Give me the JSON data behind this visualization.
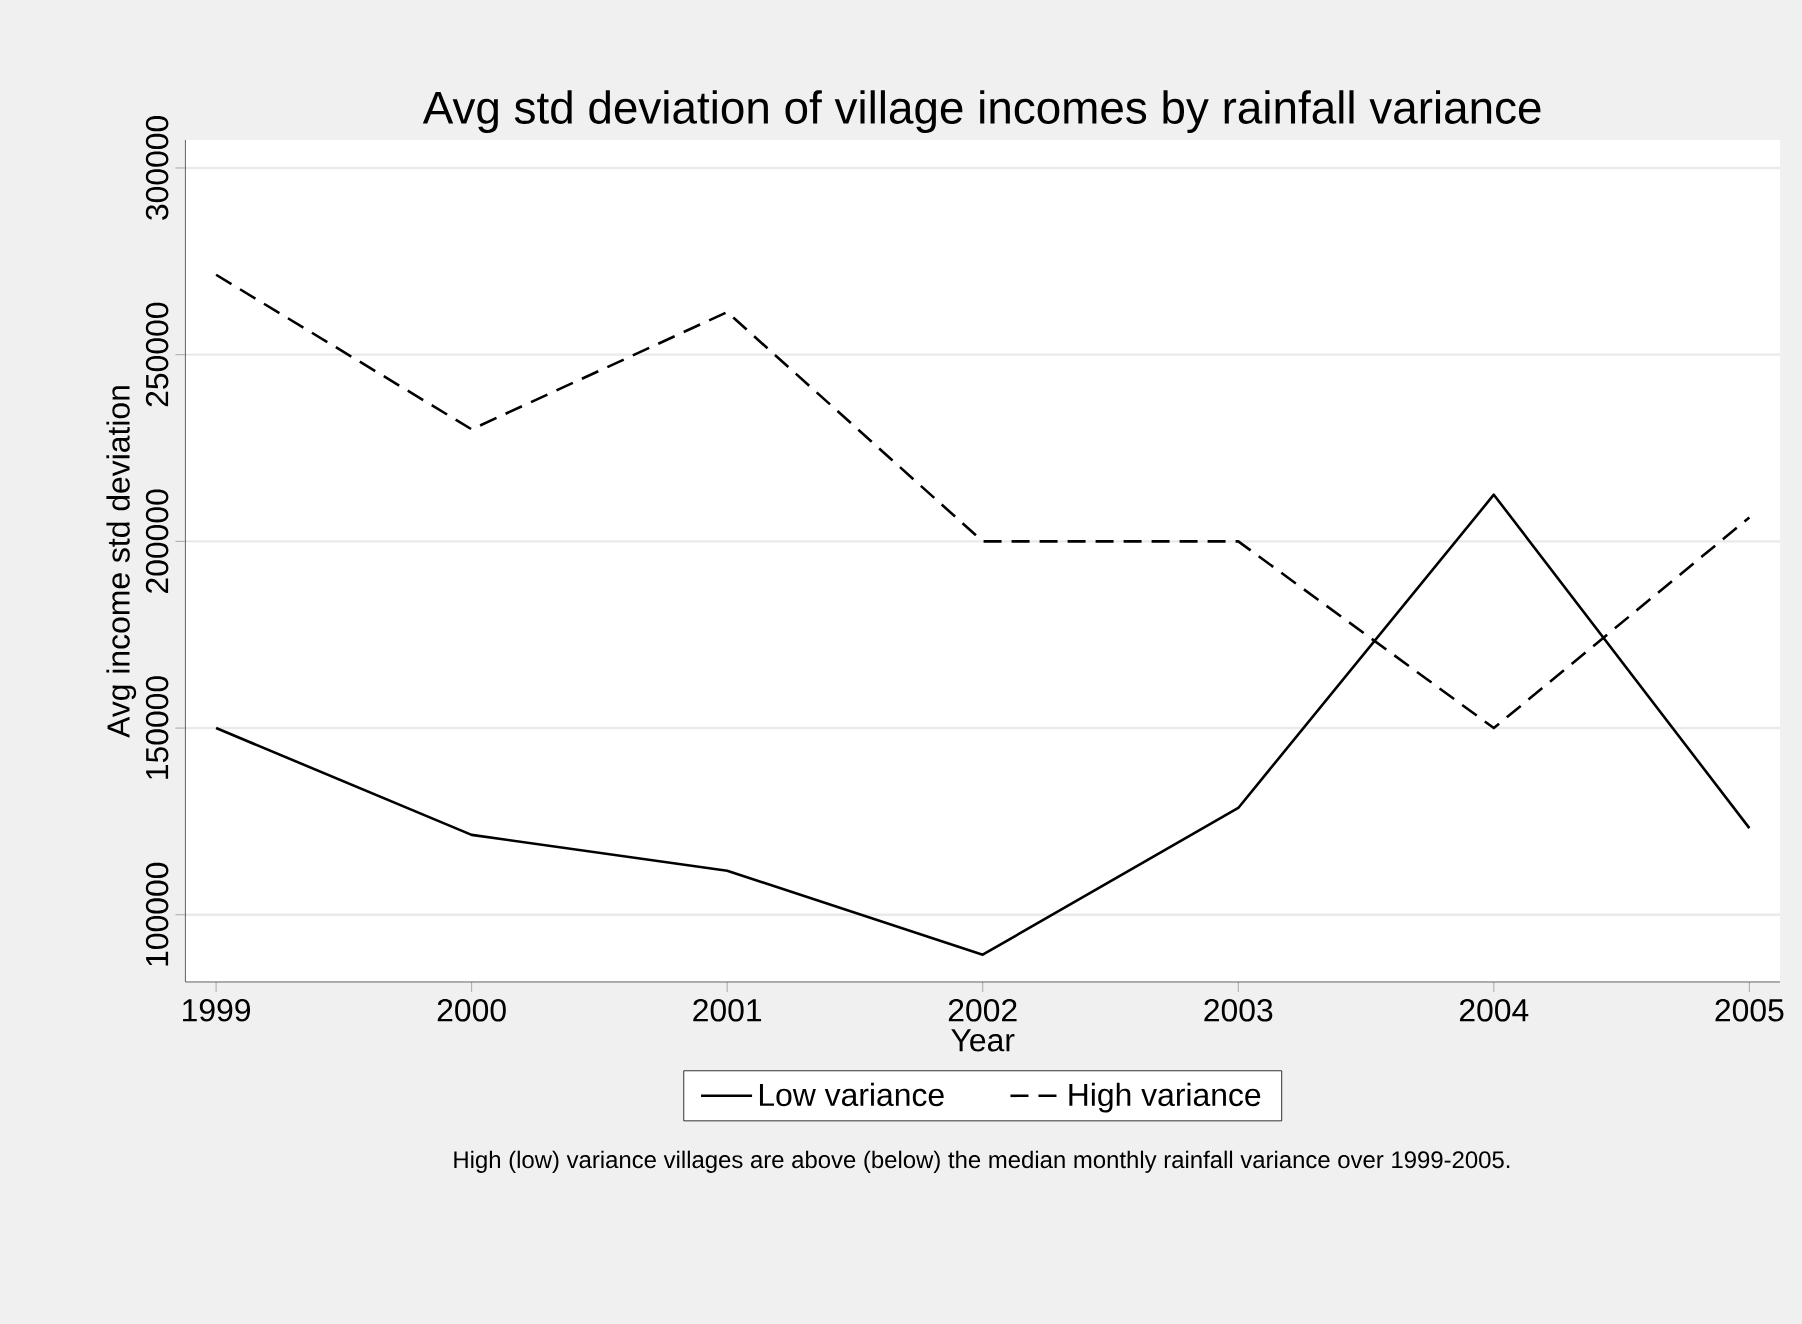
{
  "chart_data": {
    "type": "line",
    "title": "Avg std deviation of village incomes by rainfall variance",
    "xlabel": "Year",
    "ylabel": "Avg income std deviation",
    "x": [
      1999,
      2000,
      2001,
      2002,
      2003,
      2004,
      2005
    ],
    "series": [
      {
        "name": "Low variance",
        "color": "#000000",
        "line_style": "solid",
        "values": [
          150000,
          121400,
          111800,
          89300,
          128600,
          212500,
          123200
        ]
      },
      {
        "name": "High variance",
        "color": "#000000",
        "line_style": "dashed",
        "values": [
          271400,
          230000,
          261400,
          200000,
          200000,
          150000,
          206400
        ]
      }
    ],
    "xlim": [
      1998.88,
      2005.12
    ],
    "ylim": [
      82000,
      307500
    ],
    "xticks": [
      1999,
      2000,
      2001,
      2002,
      2003,
      2004,
      2005
    ],
    "yticks": [
      100000,
      150000,
      200000,
      250000,
      300000
    ],
    "grid": "y",
    "legend": "bottom",
    "marker": "none",
    "annotations": [
      "High (low) variance villages are above (below) the median monthly rainfall variance over 1999-2005."
    ]
  }
}
